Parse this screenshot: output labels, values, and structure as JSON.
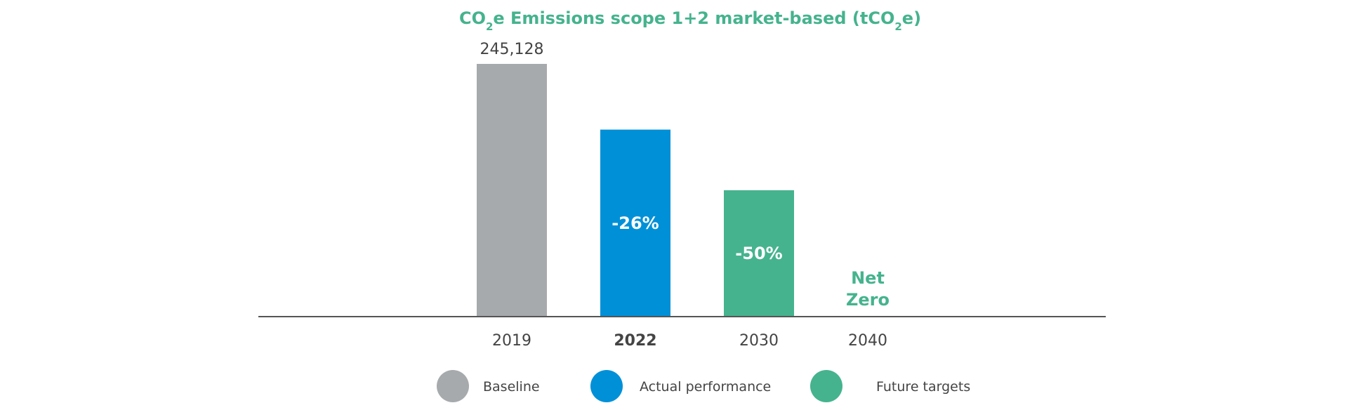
{
  "chart_data": {
    "type": "bar",
    "title": {
      "parts": [
        {
          "text": "CO",
          "sub": false
        },
        {
          "text": "2",
          "sub": true
        },
        {
          "text": "e Emissions scope 1+2 market-based (tCO",
          "sub": false
        },
        {
          "text": "2",
          "sub": true
        },
        {
          "text": "e)",
          "sub": false
        }
      ]
    },
    "categories": [
      "2019",
      "2022",
      "2030",
      "2040"
    ],
    "bold_category": "2022",
    "values": [
      245128,
      181395,
      122564,
      0
    ],
    "ylim": [
      0,
      245128
    ],
    "bars": [
      {
        "category": "2019",
        "value": 245128,
        "group": "Baseline",
        "top_label": "245,128",
        "inside_label": ""
      },
      {
        "category": "2022",
        "value": 181395,
        "group": "Actual performance",
        "top_label": "",
        "inside_label": "-26%"
      },
      {
        "category": "2030",
        "value": 122564,
        "group": "Future targets",
        "top_label": "",
        "inside_label": "-50%"
      },
      {
        "category": "2040",
        "value": 0,
        "group": "Future targets",
        "top_label": "",
        "inside_label": "",
        "text_lines": [
          "Net",
          "Zero"
        ]
      }
    ],
    "legend": [
      {
        "name": "Baseline",
        "color": "#a7aaad"
      },
      {
        "name": "Actual performance",
        "color": "#0090d8"
      },
      {
        "name": "Future targets",
        "color": "#45b38e"
      }
    ],
    "colors": {
      "title": "#45b38e",
      "axis": "#555555",
      "net_zero": "#45b38e"
    },
    "legend_position": "bottom",
    "grid": false
  }
}
